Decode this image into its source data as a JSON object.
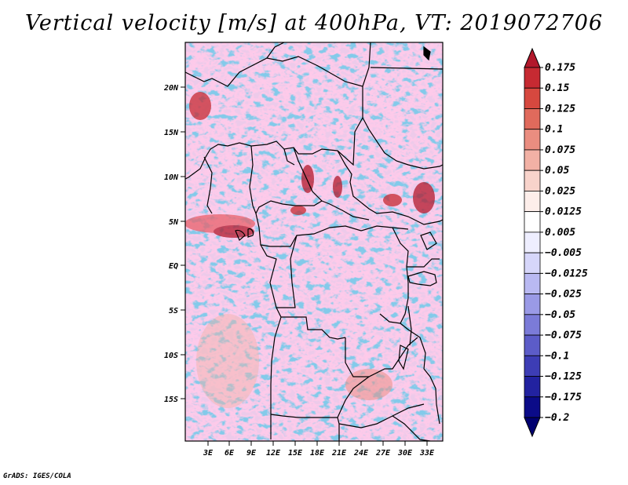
{
  "title": "Vertical velocity [m/s] at 400hPa, VT: 2019072706",
  "footer": "GrADS: IGES/COLA",
  "map": {
    "lat_labels": [
      "20N",
      "15N",
      "10N",
      "5N",
      "EQ",
      "5S",
      "10S",
      "15S"
    ],
    "lon_labels": [
      "3E",
      "6E",
      "9E",
      "12E",
      "15E",
      "18E",
      "21E",
      "24E",
      "27E",
      "30E",
      "33E"
    ]
  },
  "colorbar": {
    "labels": [
      "0.175",
      "0.15",
      "0.125",
      "0.1",
      "0.075",
      "0.05",
      "0.025",
      "0.0125",
      "0.005",
      "−0.005",
      "−0.0125",
      "−0.025",
      "−0.05",
      "−0.075",
      "−0.1",
      "−0.125",
      "−0.175",
      "−0.2"
    ],
    "colors": [
      "#b2182b",
      "#c62a32",
      "#d6483f",
      "#e06a5c",
      "#ea8d80",
      "#f2b1a5",
      "#f8d3cb",
      "#fdeeea",
      "#ffffff",
      "#eeeeff",
      "#d6d6fa",
      "#b9b9f2",
      "#9a9ae6",
      "#7b7bd8",
      "#5c5cc8",
      "#3d3db5",
      "#2222a0",
      "#0b0b88",
      "#000070"
    ]
  },
  "colors": {
    "red": "#e24a4a",
    "blue": "#3a3ad0",
    "dark_red": "#b2182b"
  }
}
